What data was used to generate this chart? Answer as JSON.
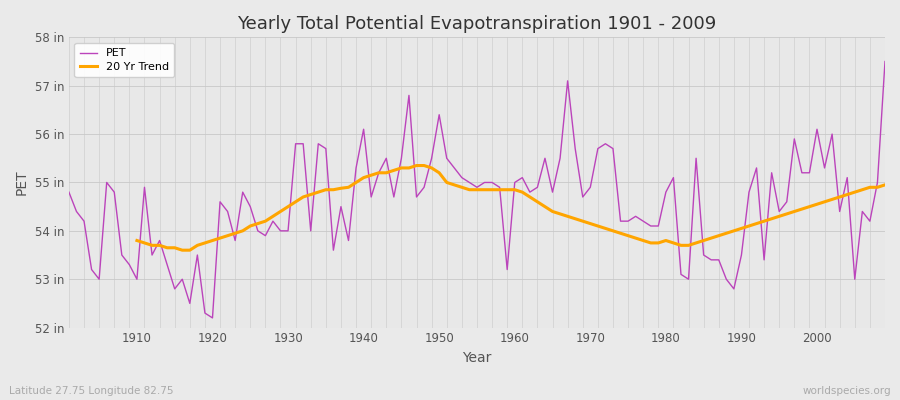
{
  "title": "Yearly Total Potential Evapotranspiration 1901 - 2009",
  "xlabel": "Year",
  "ylabel": "PET",
  "subtitle_left": "Latitude 27.75 Longitude 82.75",
  "subtitle_right": "worldspecies.org",
  "ylim": [
    52,
    58
  ],
  "xlim": [
    1901,
    2009
  ],
  "yticks": [
    52,
    53,
    54,
    55,
    56,
    57,
    58
  ],
  "ytick_labels": [
    "52 in",
    "53 in",
    "54 in",
    "55 in",
    "56 in",
    "57 in",
    "58 in"
  ],
  "xticks": [
    1910,
    1920,
    1930,
    1940,
    1950,
    1960,
    1970,
    1980,
    1990,
    2000
  ],
  "pet_color": "#BB44BB",
  "trend_color": "#FFA500",
  "background_color": "#EAEAEA",
  "plot_bg_color": "#E8E8E8",
  "grid_color": "#D0D0D0",
  "years": [
    1901,
    1902,
    1903,
    1904,
    1905,
    1906,
    1907,
    1908,
    1909,
    1910,
    1911,
    1912,
    1913,
    1914,
    1915,
    1916,
    1917,
    1918,
    1919,
    1920,
    1921,
    1922,
    1923,
    1924,
    1925,
    1926,
    1927,
    1928,
    1929,
    1930,
    1931,
    1932,
    1933,
    1934,
    1935,
    1936,
    1937,
    1938,
    1939,
    1940,
    1941,
    1942,
    1943,
    1944,
    1945,
    1946,
    1947,
    1948,
    1949,
    1950,
    1951,
    1952,
    1953,
    1954,
    1955,
    1956,
    1957,
    1958,
    1959,
    1960,
    1961,
    1962,
    1963,
    1964,
    1965,
    1966,
    1967,
    1968,
    1969,
    1970,
    1971,
    1972,
    1973,
    1974,
    1975,
    1976,
    1977,
    1978,
    1979,
    1980,
    1981,
    1982,
    1983,
    1984,
    1985,
    1986,
    1987,
    1988,
    1989,
    1990,
    1991,
    1992,
    1993,
    1994,
    1995,
    1996,
    1997,
    1998,
    1999,
    2000,
    2001,
    2002,
    2003,
    2004,
    2005,
    2006,
    2007,
    2008,
    2009
  ],
  "pet_values": [
    54.8,
    54.4,
    54.2,
    53.2,
    53.0,
    55.0,
    54.8,
    53.5,
    53.3,
    53.0,
    54.9,
    53.5,
    53.8,
    53.3,
    52.8,
    53.0,
    52.5,
    53.5,
    52.3,
    52.2,
    54.6,
    54.4,
    53.8,
    54.8,
    54.5,
    54.0,
    53.9,
    54.2,
    54.0,
    54.0,
    55.8,
    55.8,
    54.0,
    55.8,
    55.7,
    53.6,
    54.5,
    53.8,
    55.3,
    56.1,
    54.7,
    55.2,
    55.5,
    54.7,
    55.5,
    56.8,
    54.7,
    54.9,
    55.5,
    56.4,
    55.5,
    55.3,
    55.1,
    55.0,
    54.9,
    55.0,
    55.0,
    54.9,
    53.2,
    55.0,
    55.1,
    54.8,
    54.9,
    55.5,
    54.8,
    55.5,
    57.1,
    55.7,
    54.7,
    54.9,
    55.7,
    55.8,
    55.7,
    54.2,
    54.2,
    54.3,
    54.2,
    54.1,
    54.1,
    54.8,
    55.1,
    53.1,
    53.0,
    55.5,
    53.5,
    53.4,
    53.4,
    53.0,
    52.8,
    53.5,
    54.8,
    55.3,
    53.4,
    55.2,
    54.4,
    54.6,
    55.9,
    55.2,
    55.2,
    56.1,
    55.3,
    56.0,
    54.4,
    55.1,
    53.0,
    54.4,
    54.2,
    55.0,
    57.5
  ],
  "trend_values": [
    null,
    null,
    null,
    null,
    null,
    null,
    null,
    null,
    null,
    53.8,
    53.75,
    53.7,
    53.7,
    53.65,
    53.65,
    53.6,
    53.6,
    53.7,
    53.75,
    53.8,
    53.85,
    53.9,
    53.95,
    54.0,
    54.1,
    54.15,
    54.2,
    54.3,
    54.4,
    54.5,
    54.6,
    54.7,
    54.75,
    54.8,
    54.85,
    54.85,
    54.88,
    54.9,
    55.0,
    55.1,
    55.15,
    55.2,
    55.2,
    55.25,
    55.3,
    55.3,
    55.35,
    55.35,
    55.3,
    55.2,
    55.0,
    54.95,
    54.9,
    54.85,
    54.85,
    54.85,
    54.85,
    54.85,
    54.85,
    54.85,
    54.8,
    54.7,
    54.6,
    54.5,
    54.4,
    54.35,
    54.3,
    54.25,
    54.2,
    54.15,
    54.1,
    54.05,
    54.0,
    53.95,
    53.9,
    53.85,
    53.8,
    53.75,
    53.75,
    53.8,
    53.75,
    53.7,
    53.7,
    53.75,
    53.8,
    53.85,
    53.9,
    53.95,
    54.0,
    54.05,
    54.1,
    54.15,
    54.2,
    54.25,
    54.3,
    54.35,
    54.4,
    54.45,
    54.5,
    54.55,
    54.6,
    54.65,
    54.7,
    54.75,
    54.8,
    54.85,
    54.9,
    54.9,
    54.95
  ]
}
